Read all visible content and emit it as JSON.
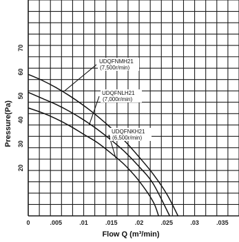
{
  "chart_data": {
    "type": "line",
    "xlabel": "Flow Q (m³/min)",
    "ylabel": "Pressure(Pa)",
    "xlim": [
      0,
      0.038
    ],
    "ylim": [
      0,
      90
    ],
    "x_ticks": [
      "0",
      ".005",
      ".01",
      ".015",
      ".02",
      ".025",
      ".03",
      ".035"
    ],
    "x_tick_values": [
      0,
      0.005,
      0.01,
      0.015,
      0.02,
      0.025,
      0.03,
      0.035
    ],
    "y_ticks": [
      "20",
      "30",
      "40",
      "50",
      "60",
      "70"
    ],
    "y_tick_values": [
      20,
      30,
      40,
      50,
      60,
      70
    ],
    "grid": true,
    "series": [
      {
        "name": "UDQFNMH21",
        "sublabel": "(7,500r/min)",
        "x": [
          0,
          0.0025,
          0.005,
          0.0075,
          0.01,
          0.0125,
          0.015,
          0.0175,
          0.02,
          0.0225,
          0.025,
          0.027
        ],
        "y": [
          59,
          56.5,
          53.5,
          50,
          46,
          41.5,
          36.5,
          31,
          24.5,
          17.5,
          9,
          0
        ]
      },
      {
        "name": "UDQFNLH21",
        "sublabel": "(7,000r/min)",
        "x": [
          0,
          0.0025,
          0.005,
          0.0075,
          0.01,
          0.0125,
          0.015,
          0.0175,
          0.02,
          0.0225,
          0.0255
        ],
        "y": [
          51.5,
          49,
          46.5,
          43.5,
          40,
          36,
          31.5,
          26.5,
          20.5,
          13.5,
          0
        ]
      },
      {
        "name": "UDQFNKH21",
        "sublabel": "(6,500r/min)",
        "x": [
          0,
          0.0025,
          0.005,
          0.0075,
          0.01,
          0.0125,
          0.015,
          0.0175,
          0.02,
          0.0225,
          0.0235
        ],
        "y": [
          45,
          43,
          40.5,
          37.5,
          34,
          30.5,
          26,
          21,
          14.5,
          6,
          0
        ]
      }
    ],
    "annotations": [
      {
        "label": "UDQFNMH21",
        "sublabel": "(7,500r/min)",
        "series_index": 0,
        "anchor_x": 0.0065,
        "anchor_y": 52
      },
      {
        "label": "UDQFNLH21",
        "sublabel": "(7,000r/min)",
        "series_index": 1,
        "anchor_x": 0.011,
        "anchor_y": 38
      },
      {
        "label": "UDQFNKH21",
        "sublabel": "(6,500r/min)",
        "series_index": 2,
        "anchor_x": 0.0158,
        "anchor_y": 24
      }
    ]
  }
}
